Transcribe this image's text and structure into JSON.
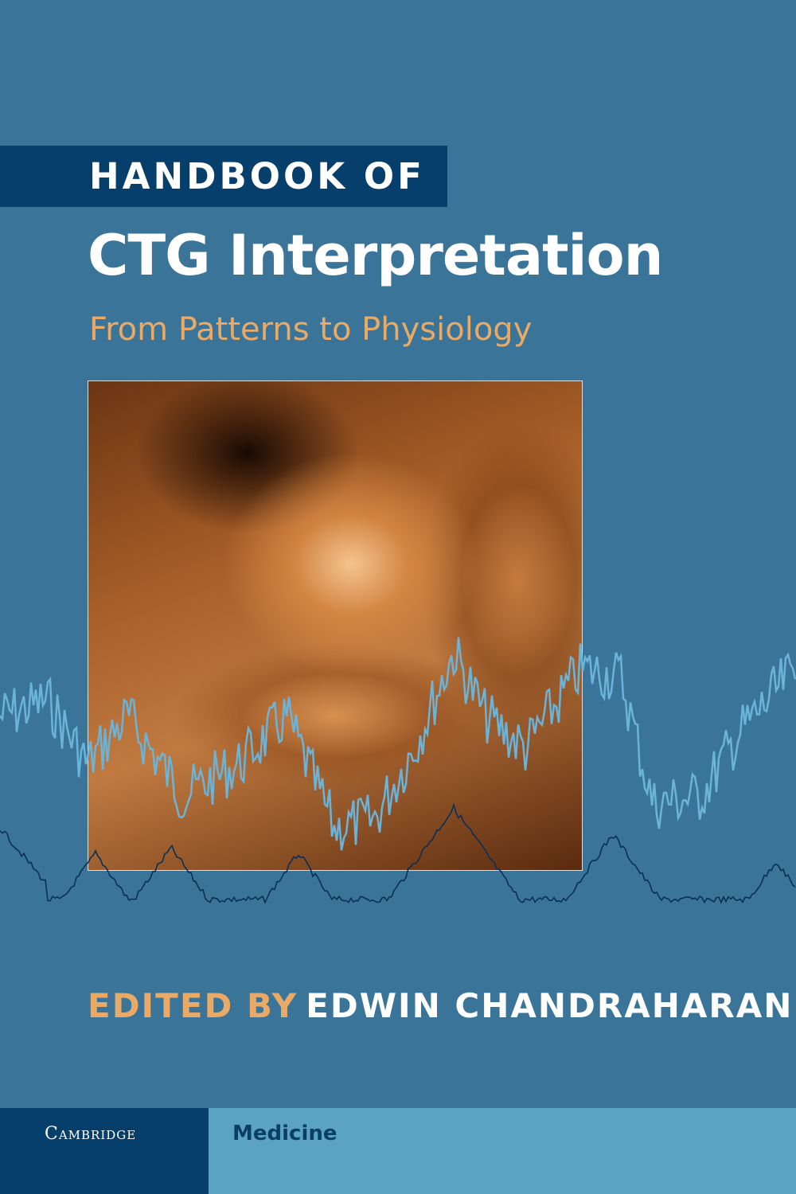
{
  "cover": {
    "series_label": "HANDBOOK OF",
    "title": "CTG Interpretation",
    "subtitle": "From Patterns to Physiology",
    "editor_label": "EDITED BY",
    "editor_name": "EDWIN CHANDRAHARAN",
    "publisher": "Cambridge",
    "imprint": "Medicine"
  },
  "colors": {
    "background": "#3a7599",
    "dark_navy": "#073f6c",
    "accent_orange": "#e8aa66",
    "imprint_blue": "#5aa3c2",
    "fhr_trace": "#6bb3d8",
    "toco_trace": "#0b2f55"
  }
}
